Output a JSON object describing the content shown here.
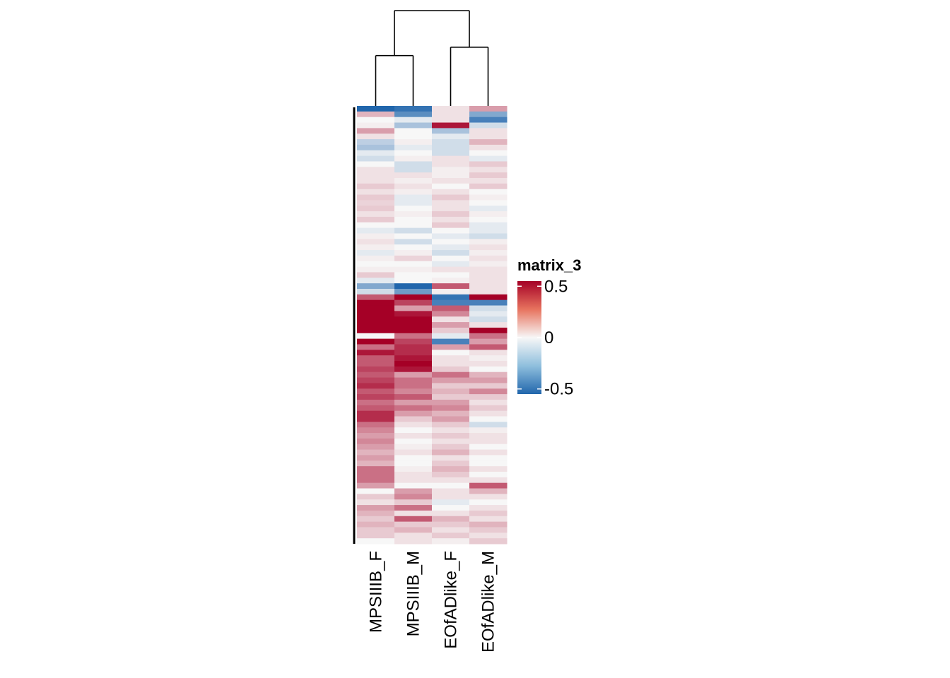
{
  "chart_data": {
    "type": "heatmap",
    "title": "",
    "columns": [
      "MPSIIIB_F",
      "MPSIIIB_M",
      "EOfADlike_F",
      "EOfADlike_M"
    ],
    "column_order_note": "",
    "dendrogram": {
      "merges": [
        {
          "left": "MPSIIIB_F",
          "right": "MPSIIIB_M",
          "height": 0.6
        },
        {
          "left": "EOfADlike_F",
          "right": "EOfADlike_M",
          "height": 0.7
        },
        {
          "left": "MPSIIIB",
          "right": "EOfADlike",
          "height": 1.0
        }
      ]
    },
    "legend": {
      "title": "matrix_3",
      "ticks": [
        0.5,
        0,
        -0.5
      ],
      "tick_labels": [
        "0.5",
        "0",
        "-0.5"
      ],
      "range": [
        -0.55,
        0.55
      ],
      "colors": {
        "high": "#a50026",
        "mid": "#f7f7f7",
        "low": "#2166ac"
      }
    },
    "values": [
      [
        -0.55,
        -0.5,
        0.05,
        0.2
      ],
      [
        0.15,
        -0.4,
        0.05,
        -0.3
      ],
      [
        0.0,
        -0.05,
        0.05,
        -0.45
      ],
      [
        0.02,
        -0.2,
        0.5,
        -0.1
      ],
      [
        0.2,
        0.0,
        -0.2,
        0.05
      ],
      [
        0.05,
        0.0,
        -0.05,
        0.05
      ],
      [
        -0.15,
        0.02,
        -0.1,
        0.15
      ],
      [
        -0.2,
        -0.05,
        -0.1,
        0.05
      ],
      [
        -0.05,
        0.0,
        -0.1,
        0.0
      ],
      [
        -0.1,
        0.02,
        0.05,
        -0.05
      ],
      [
        0.0,
        -0.1,
        0.05,
        0.1
      ],
      [
        0.05,
        -0.1,
        0.02,
        0.05
      ],
      [
        0.05,
        0.05,
        0.02,
        0.1
      ],
      [
        0.05,
        0.02,
        0.05,
        0.05
      ],
      [
        0.1,
        0.05,
        0.0,
        0.1
      ],
      [
        0.05,
        0.02,
        0.05,
        0.0
      ],
      [
        0.1,
        -0.05,
        0.1,
        0.02
      ],
      [
        0.08,
        -0.05,
        0.05,
        0.0
      ],
      [
        0.1,
        0.0,
        0.05,
        -0.05
      ],
      [
        0.05,
        0.02,
        0.1,
        0.02
      ],
      [
        0.1,
        0.0,
        0.05,
        0.0
      ],
      [
        0.0,
        0.0,
        0.1,
        -0.05
      ],
      [
        -0.05,
        -0.1,
        0.0,
        -0.05
      ],
      [
        0.02,
        0.0,
        -0.05,
        -0.1
      ],
      [
        0.05,
        -0.1,
        0.0,
        0.02
      ],
      [
        0.02,
        0.0,
        -0.05,
        0.05
      ],
      [
        -0.05,
        0.02,
        -0.1,
        0.02
      ],
      [
        0.02,
        0.08,
        0.0,
        0.05
      ],
      [
        0.0,
        0.0,
        -0.05,
        0.02
      ],
      [
        0.02,
        0.02,
        0.05,
        0.05
      ],
      [
        0.1,
        0.0,
        0.0,
        0.05
      ],
      [
        -0.05,
        0.0,
        0.02,
        0.05
      ],
      [
        -0.3,
        -0.55,
        0.35,
        0.05
      ],
      [
        -0.1,
        -0.35,
        0.02,
        0.05
      ],
      [
        0.35,
        0.55,
        -0.5,
        0.55
      ],
      [
        0.55,
        0.4,
        -0.45,
        -0.45
      ],
      [
        0.55,
        0.2,
        0.35,
        -0.1
      ],
      [
        0.55,
        0.5,
        0.25,
        -0.05
      ],
      [
        0.55,
        0.55,
        0.05,
        -0.1
      ],
      [
        0.55,
        0.55,
        0.2,
        0.05
      ],
      [
        0.55,
        0.55,
        0.1,
        0.55
      ],
      [
        0.0,
        0.3,
        -0.05,
        0.3
      ],
      [
        0.55,
        0.4,
        -0.45,
        0.2
      ],
      [
        0.3,
        0.45,
        0.2,
        0.35
      ],
      [
        0.5,
        0.45,
        0.0,
        0.05
      ],
      [
        0.35,
        0.5,
        0.05,
        0.02
      ],
      [
        0.35,
        0.55,
        0.05,
        0.05
      ],
      [
        0.4,
        0.5,
        0.1,
        0.0
      ],
      [
        0.35,
        0.2,
        0.3,
        0.15
      ],
      [
        0.4,
        0.3,
        0.2,
        0.2
      ],
      [
        0.45,
        0.3,
        0.1,
        0.1
      ],
      [
        0.35,
        0.25,
        0.15,
        0.25
      ],
      [
        0.4,
        0.35,
        0.1,
        0.1
      ],
      [
        0.3,
        0.2,
        0.2,
        0.05
      ],
      [
        0.35,
        0.3,
        0.25,
        0.1
      ],
      [
        0.45,
        0.2,
        0.15,
        0.05
      ],
      [
        0.45,
        0.1,
        0.2,
        0.0
      ],
      [
        0.3,
        0.05,
        0.1,
        -0.1
      ],
      [
        0.25,
        0.0,
        0.05,
        0.02
      ],
      [
        0.2,
        0.05,
        0.1,
        0.05
      ],
      [
        0.25,
        0.0,
        0.05,
        0.05
      ],
      [
        0.2,
        0.02,
        0.1,
        0.0
      ],
      [
        0.15,
        0.05,
        0.15,
        0.05
      ],
      [
        0.2,
        0.0,
        0.05,
        0.0
      ],
      [
        0.15,
        0.0,
        0.1,
        0.0
      ],
      [
        0.3,
        0.02,
        0.15,
        0.05
      ],
      [
        0.3,
        0.05,
        0.1,
        0.0
      ],
      [
        0.3,
        0.05,
        0.05,
        0.05
      ],
      [
        0.2,
        0.0,
        0.0,
        0.35
      ],
      [
        0.0,
        0.2,
        0.05,
        0.15
      ],
      [
        0.1,
        0.25,
        0.05,
        0.05
      ],
      [
        0.05,
        0.1,
        -0.05,
        0.0
      ],
      [
        0.2,
        0.3,
        0.0,
        0.05
      ],
      [
        0.15,
        0.05,
        0.05,
        0.1
      ],
      [
        0.1,
        0.35,
        0.15,
        0.05
      ],
      [
        0.15,
        0.1,
        0.1,
        0.15
      ],
      [
        0.1,
        0.15,
        0.05,
        0.1
      ],
      [
        0.1,
        0.05,
        0.1,
        0.05
      ],
      [
        0.0,
        0.05,
        0.02,
        0.1
      ]
    ]
  }
}
